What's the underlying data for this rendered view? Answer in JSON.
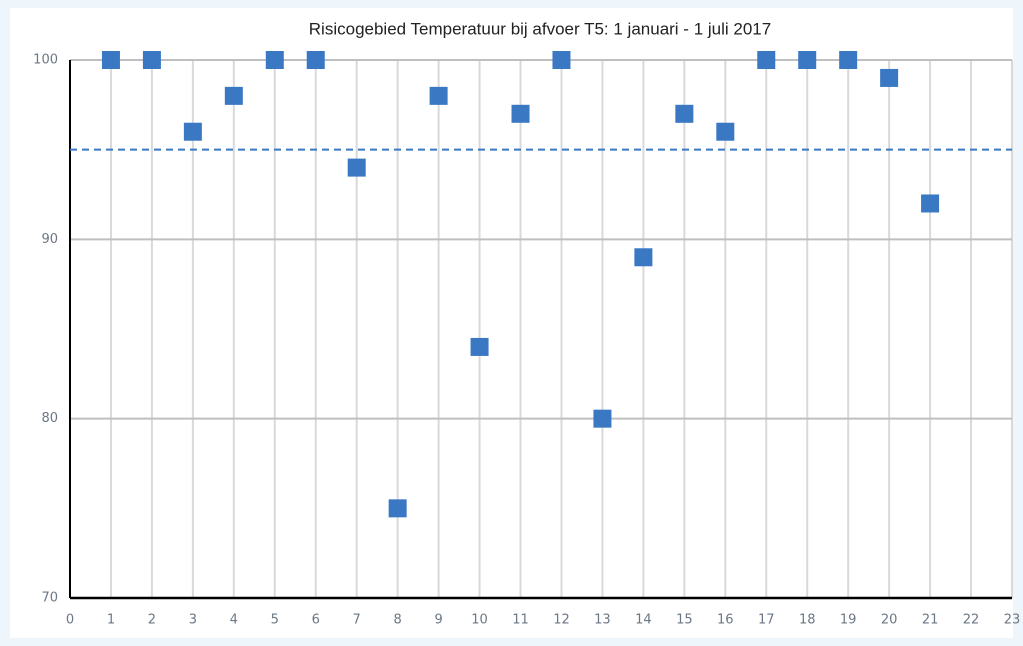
{
  "chart_data": {
    "type": "scatter",
    "title": "Risicogebied Temperatuur bij afvoer T5: 1 januari - 1 juli 2017",
    "series": [
      {
        "color": "#3a78c4",
        "x": [
          1,
          2,
          3,
          4,
          5,
          6,
          7,
          8,
          9,
          10,
          11,
          12,
          13,
          14,
          15,
          16,
          17,
          18,
          19,
          20,
          21
        ],
        "values": [
          100,
          100,
          96,
          98,
          100,
          100,
          94,
          75,
          98,
          84,
          97,
          100,
          80,
          89,
          97,
          96,
          100,
          100,
          100,
          99,
          92
        ]
      }
    ],
    "hline": {
      "value": 95,
      "color": "#3a78c4",
      "dashed": true
    },
    "xlim": [
      0,
      23
    ],
    "xticks": [
      0,
      1,
      2,
      3,
      4,
      5,
      6,
      7,
      8,
      9,
      10,
      11,
      12,
      13,
      14,
      15,
      16,
      17,
      18,
      19,
      20,
      21,
      22,
      23
    ],
    "ylim": [
      70,
      100
    ],
    "yticks": [
      70,
      80,
      90,
      100
    ],
    "grid": true
  }
}
